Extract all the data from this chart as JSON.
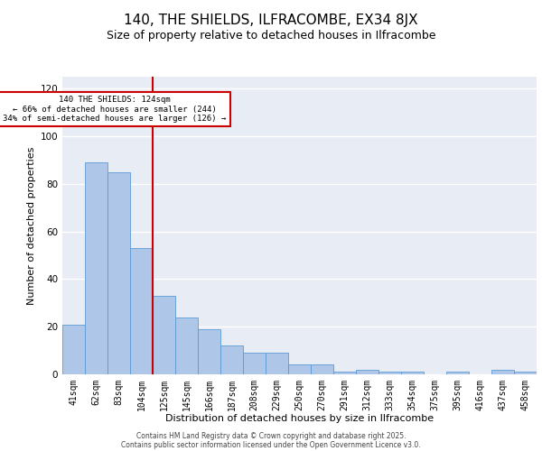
{
  "title": "140, THE SHIELDS, ILFRACOMBE, EX34 8JX",
  "subtitle": "Size of property relative to detached houses in Ilfracombe",
  "xlabel": "Distribution of detached houses by size in Ilfracombe",
  "ylabel": "Number of detached properties",
  "bar_labels": [
    "41sqm",
    "62sqm",
    "83sqm",
    "104sqm",
    "125sqm",
    "145sqm",
    "166sqm",
    "187sqm",
    "208sqm",
    "229sqm",
    "250sqm",
    "270sqm",
    "291sqm",
    "312sqm",
    "333sqm",
    "354sqm",
    "375sqm",
    "395sqm",
    "416sqm",
    "437sqm",
    "458sqm"
  ],
  "bar_values": [
    21,
    89,
    85,
    53,
    33,
    24,
    19,
    12,
    9,
    9,
    4,
    4,
    1,
    2,
    1,
    1,
    0,
    1,
    0,
    2,
    1
  ],
  "bar_color": "#aec6e8",
  "bar_edge_color": "#5b9bd5",
  "background_color": "#e8edf5",
  "grid_color": "#ffffff",
  "vline_x": 4.0,
  "vline_color": "#cc0000",
  "annotation_text": "140 THE SHIELDS: 124sqm\n← 66% of detached houses are smaller (244)\n34% of semi-detached houses are larger (126) →",
  "annotation_box_color": "#cc0000",
  "ylim": [
    0,
    125
  ],
  "yticks": [
    0,
    20,
    40,
    60,
    80,
    100,
    120
  ],
  "footer_line1": "Contains HM Land Registry data © Crown copyright and database right 2025.",
  "footer_line2": "Contains public sector information licensed under the Open Government Licence v3.0.",
  "title_fontsize": 11,
  "subtitle_fontsize": 9,
  "label_fontsize": 8,
  "tick_fontsize": 7
}
